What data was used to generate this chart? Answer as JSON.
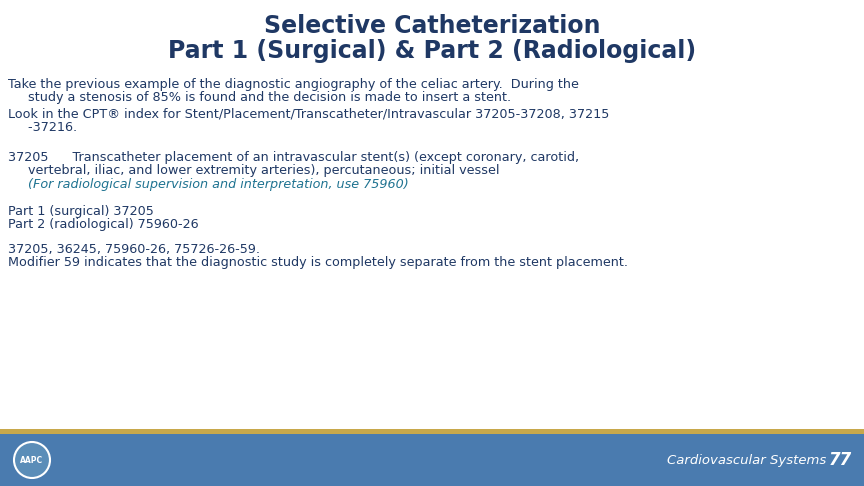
{
  "title_line1": "Selective Catheterization",
  "title_line2": "Part 1 (Surgical) & Part 2 (Radiological)",
  "title_color": "#1F3864",
  "title_fontsize": 17,
  "body_color": "#1F3864",
  "body_fontsize": 9.2,
  "teal_color": "#1F7391",
  "background_color": "#FFFFFF",
  "footer_bg_color": "#4A7BAF",
  "footer_text": "Cardiovascular Systems",
  "footer_number": "77",
  "footer_text_color": "#FFFFFF",
  "gold_color": "#C8A84B",
  "para1_line1": "Take the previous example of the diagnostic angiography of the celiac artery.  During the",
  "para1_line2": "     study a stenosis of 85% is found and the decision is made to insert a stent.",
  "para2_line1": "Look in the CPT® index for Stent/Placement/Transcatheter/Intravascular 37205-37208, 37215",
  "para2_line2": "     -37216.",
  "code_line1": "37205      Transcatheter placement of an intravascular stent(s) (except coronary, carotid,",
  "code_line2": "     vertebral, iliac, and lower extremity arteries), percutaneous; initial vessel",
  "code_line3": "     (For radiological supervision and interpretation, use 75960)",
  "part_line1": "Part 1 (surgical) 37205",
  "part_line2": "Part 2 (radiological) 75960-26",
  "final_line1": "37205, 36245, 75960-26, 75726-26-59.",
  "final_line2": "Modifier 59 indicates that the diagnostic study is completely separate from the stent placement.",
  "footer_fontsize": 9.5,
  "footer_number_fontsize": 12
}
